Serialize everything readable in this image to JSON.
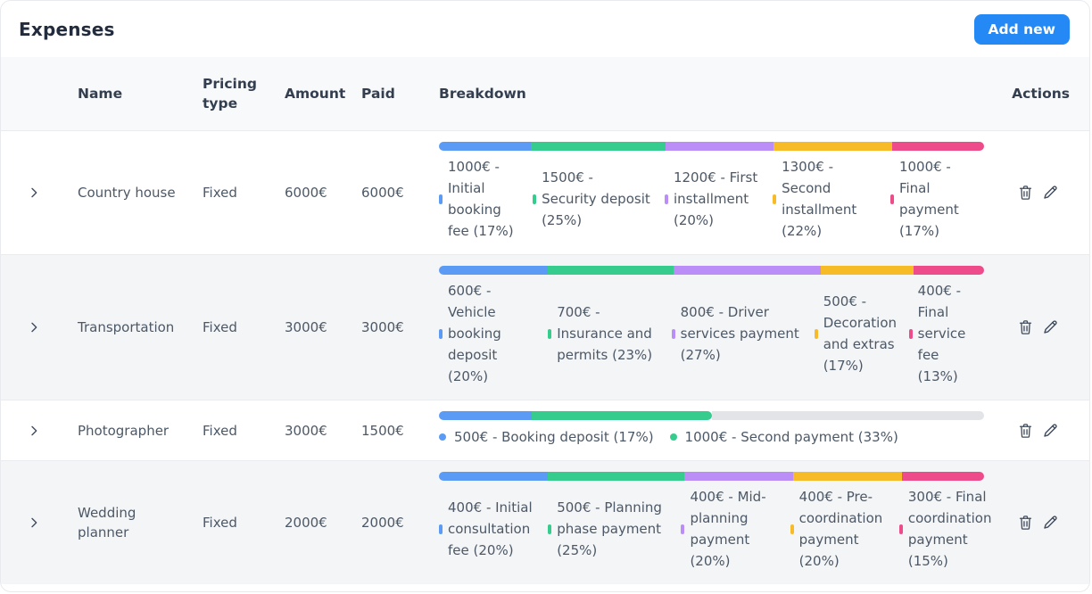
{
  "page": {
    "title": "Expenses",
    "add_button_label": "Add new"
  },
  "colors": {
    "primary": "#2589f5",
    "bar_unfilled": "#e2e4e8",
    "segment_palette": [
      "#5b9bf5",
      "#36cc8d",
      "#ba8ef6",
      "#f8bb28",
      "#ee4b8b"
    ]
  },
  "icons": {
    "expand": "chevron-right",
    "delete": "trash",
    "edit": "pencil"
  },
  "table": {
    "headers": {
      "name": "Name",
      "pricing_type": "Pricing type",
      "amount": "Amount",
      "paid": "Paid",
      "breakdown": "Breakdown",
      "actions": "Actions"
    },
    "rows": [
      {
        "name": "Country house",
        "pricing_type": "Fixed",
        "amount": "6000€",
        "paid": "6000€",
        "breakdown": [
          {
            "label": "1000€ - Initial booking fee (17%)",
            "percent": 17,
            "color": "#5b9bf5"
          },
          {
            "label": "1500€ - Security deposit (25%)",
            "percent": 25,
            "color": "#36cc8d"
          },
          {
            "label": "1200€ - First installment (20%)",
            "percent": 20,
            "color": "#ba8ef6"
          },
          {
            "label": "1300€ - Second installment (22%)",
            "percent": 22,
            "color": "#f8bb28"
          },
          {
            "label": "1000€ - Final payment (17%)",
            "percent": 17,
            "color": "#ee4b8b"
          }
        ]
      },
      {
        "name": "Transportation",
        "pricing_type": "Fixed",
        "amount": "3000€",
        "paid": "3000€",
        "breakdown": [
          {
            "label": "600€ - Vehicle booking deposit (20%)",
            "percent": 20,
            "color": "#5b9bf5"
          },
          {
            "label": "700€ - Insurance and permits (23%)",
            "percent": 23,
            "color": "#36cc8d"
          },
          {
            "label": "800€ - Driver services payment (27%)",
            "percent": 27,
            "color": "#ba8ef6"
          },
          {
            "label": "500€ - Decoration and extras (17%)",
            "percent": 17,
            "color": "#f8bb28"
          },
          {
            "label": "400€ - Final service fee (13%)",
            "percent": 13,
            "color": "#ee4b8b"
          }
        ]
      },
      {
        "name": "Photographer",
        "pricing_type": "Fixed",
        "amount": "3000€",
        "paid": "1500€",
        "legend_inline": true,
        "breakdown": [
          {
            "label": "500€ - Booking deposit (17%)",
            "percent": 17,
            "color": "#5b9bf5"
          },
          {
            "label": "1000€ - Second payment (33%)",
            "percent": 33,
            "color": "#36cc8d"
          }
        ]
      },
      {
        "name": "Wedding planner",
        "pricing_type": "Fixed",
        "amount": "2000€",
        "paid": "2000€",
        "breakdown": [
          {
            "label": "400€ - Initial consultation fee (20%)",
            "percent": 20,
            "color": "#5b9bf5"
          },
          {
            "label": "500€ - Planning phase payment (25%)",
            "percent": 25,
            "color": "#36cc8d"
          },
          {
            "label": "400€ - Mid-planning payment (20%)",
            "percent": 20,
            "color": "#ba8ef6"
          },
          {
            "label": "400€ - Pre-coordination payment (20%)",
            "percent": 20,
            "color": "#f8bb28"
          },
          {
            "label": "300€ - Final coordination payment (15%)",
            "percent": 15,
            "color": "#ee4b8b"
          }
        ]
      }
    ]
  }
}
